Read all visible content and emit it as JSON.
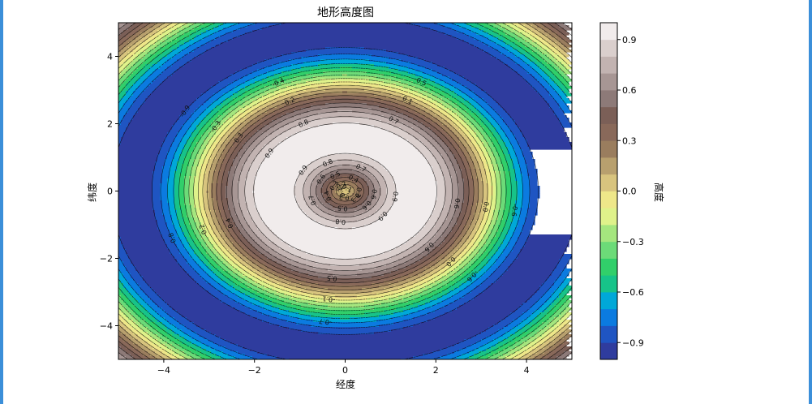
{
  "chart_data": {
    "type": "contour",
    "title": "地形高度图",
    "xlabel": "经度",
    "ylabel": "纬度",
    "xlim": [
      -5,
      5
    ],
    "ylim": [
      -5,
      5
    ],
    "x_ticks": [
      -4,
      -2,
      0,
      2,
      4
    ],
    "y_ticks": [
      -4,
      -2,
      0,
      2,
      4
    ],
    "x_tick_labels": [
      "−4",
      "−2",
      "0",
      "2",
      "4"
    ],
    "y_tick_labels": [
      "−4",
      "−2",
      "0",
      "2",
      "4"
    ],
    "function": "sin(sqrt(x^2 + y^2))",
    "levels": [
      -1.0,
      -0.9,
      -0.8,
      -0.7,
      -0.6,
      -0.5,
      -0.4,
      -0.3,
      -0.2,
      -0.1,
      0.0,
      0.1,
      0.2,
      0.3,
      0.4,
      0.5,
      0.6,
      0.7,
      0.8,
      0.9,
      1.0
    ],
    "colormap": "terrain",
    "colors": [
      "#2f3c9e",
      "#1f55c2",
      "#0b7be0",
      "#00a8d8",
      "#17c389",
      "#31cf6a",
      "#6cdb78",
      "#a5e67e",
      "#dff28a",
      "#eee789",
      "#d8c47e",
      "#b8a06e",
      "#9a7d5e",
      "#89695a",
      "#7b5f57",
      "#8d7a78",
      "#a79694",
      "#c2b3b1",
      "#dacfcd",
      "#f1ecec"
    ],
    "contour_labels": [
      "0.9",
      "0.8",
      "0.7",
      "0.6",
      "0.5",
      "0.4",
      "0.3",
      "0.2",
      "0.1",
      "0.0",
      "-0.1",
      "-0.2",
      "-0.3",
      "-0.4",
      "-0.5",
      "-0.6",
      "-0.7",
      "-0.8",
      "-0.9"
    ],
    "colorbar": {
      "label": "高度",
      "ticks": [
        0.9,
        0.6,
        0.3,
        0.0,
        -0.3,
        -0.6,
        -0.9
      ],
      "tick_labels": [
        "0.9",
        "0.6",
        "0.3",
        "0.0",
        "−0.3",
        "−0.6",
        "−0.9"
      ]
    }
  }
}
